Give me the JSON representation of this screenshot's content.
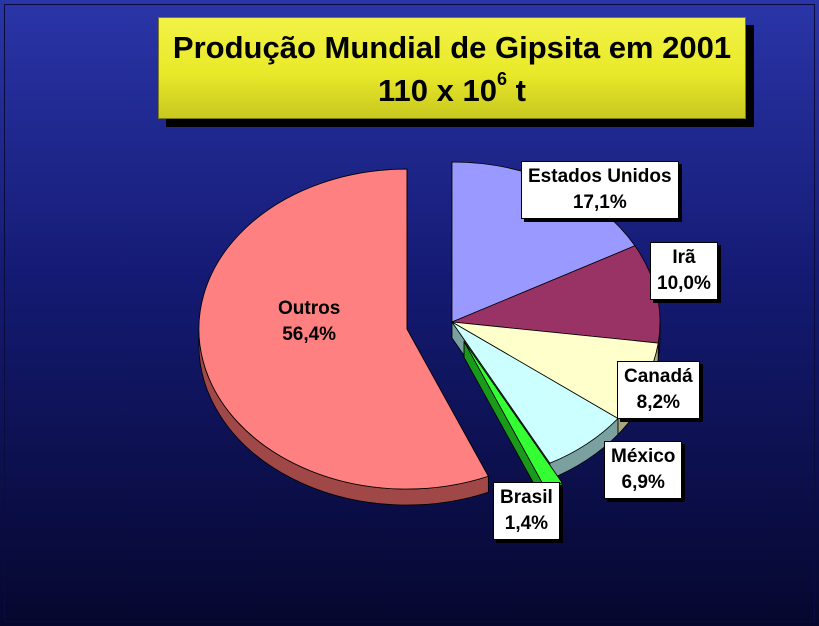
{
  "chart_data": {
    "type": "pie",
    "title": "Produção Mundial de Gipsita em 2001",
    "subtitle": {
      "base": "110 x 10",
      "exponent": "6",
      "unit": " t"
    },
    "slices": [
      {
        "name": "Estados Unidos",
        "value": 17.1,
        "label": "17,1%",
        "color": "#9999ff",
        "side": "#5a5aa8"
      },
      {
        "name": "Irã",
        "value": 10.0,
        "label": "10,0%",
        "color": "#993366",
        "side": "#5e1f3f"
      },
      {
        "name": "Canadá",
        "value": 8.2,
        "label": "8,2%",
        "color": "#ffffcc",
        "side": "#a8a880"
      },
      {
        "name": "México",
        "value": 6.9,
        "label": "6,9%",
        "color": "#ccffff",
        "side": "#7aa0a0"
      },
      {
        "name": "Brasil",
        "value": 1.4,
        "label": "1,4%",
        "color": "#33ff33",
        "side": "#1a9a1a"
      },
      {
        "name": "Outros",
        "value": 56.4,
        "label": "56,4%",
        "color": "#ff8080",
        "side": "#a04848"
      }
    ],
    "exploded": [
      "Outros",
      "Brasil"
    ],
    "style": "3d"
  }
}
